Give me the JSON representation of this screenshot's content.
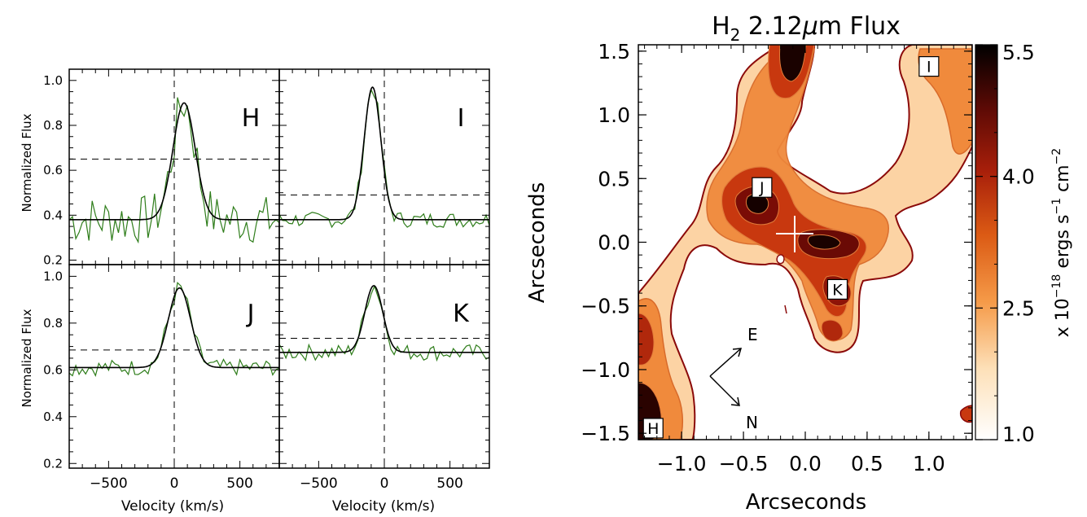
{
  "spectra": {
    "ylabel": "Normalized Flux",
    "xlabel": "Velocity (km/s)",
    "xlim": [
      -800,
      800
    ],
    "ylim": [
      0.18,
      1.05
    ],
    "x_ticks": [
      -500,
      0,
      500
    ],
    "y_ticks": [
      0.2,
      0.4,
      0.6,
      0.8,
      1.0
    ],
    "y_tick_labels": [
      "0.2",
      "0.4",
      "0.6",
      "0.8",
      "1.0"
    ],
    "colors": {
      "data": "#2e7d1a",
      "fit": "#000000",
      "frame": "#000000"
    },
    "panels": [
      {
        "label": "H",
        "continuum": 0.38,
        "peak": 0.9,
        "center": 75,
        "fwhm": 200,
        "threshold": 0.65,
        "show_y": true,
        "show_x": false,
        "show_lower_ticks": false
      },
      {
        "label": "I",
        "continuum": 0.38,
        "peak": 0.97,
        "center": -90,
        "fwhm": 150,
        "threshold": 0.49,
        "show_y": false,
        "show_x": false,
        "show_lower_ticks": false
      },
      {
        "label": "J",
        "continuum": 0.61,
        "peak": 0.95,
        "center": 40,
        "fwhm": 200,
        "threshold": 0.685,
        "show_y": true,
        "show_x": true,
        "show_lower_ticks": true
      },
      {
        "label": "K",
        "continuum": 0.675,
        "peak": 0.96,
        "center": -80,
        "fwhm": 160,
        "threshold": 0.735,
        "show_y": false,
        "show_x": true,
        "show_lower_ticks": true
      }
    ]
  },
  "map": {
    "title": "H",
    "title_sub": "2",
    "title_rest": " 2.12",
    "title_mu": "μ",
    "title_end": "m Flux",
    "xlabel": "Arcseconds",
    "ylabel": "Arcseconds",
    "xlim": [
      -1.35,
      1.35
    ],
    "ylim": [
      -1.55,
      1.55
    ],
    "x_ticks": [
      -1.0,
      -0.5,
      0.0,
      0.5,
      1.0
    ],
    "x_tick_labels": [
      "−1.0",
      "−0.5",
      "0.0",
      "0.5",
      "1.0"
    ],
    "y_ticks": [
      -1.5,
      -1.0,
      -0.5,
      0.0,
      0.5,
      1.0,
      1.5
    ],
    "y_tick_labels": [
      "−1.5",
      "−1.0",
      "−0.5",
      "0.0",
      "0.5",
      "1.0",
      "1.5"
    ],
    "sources": [
      {
        "label": "H",
        "x": -1.23,
        "y": -1.46
      },
      {
        "label": "I",
        "x": 1.0,
        "y": 1.38
      },
      {
        "label": "J",
        "x": -0.35,
        "y": 0.43
      },
      {
        "label": "K",
        "x": 0.26,
        "y": -0.37
      }
    ],
    "compass": {
      "east": "E",
      "north": "N"
    },
    "colorbar": {
      "min": 1.0,
      "max": 5.5,
      "tick_labels": [
        "1.0",
        "2.5",
        "4.0",
        "5.5"
      ],
      "tick_values": [
        1.0,
        2.5,
        4.0,
        5.5
      ],
      "label_prefix": "x 10",
      "label_exp": "−18",
      "label_mid": " ergs s",
      "label_exp2": "−1",
      "label_mid2": " cm",
      "label_exp3": "−2"
    }
  }
}
